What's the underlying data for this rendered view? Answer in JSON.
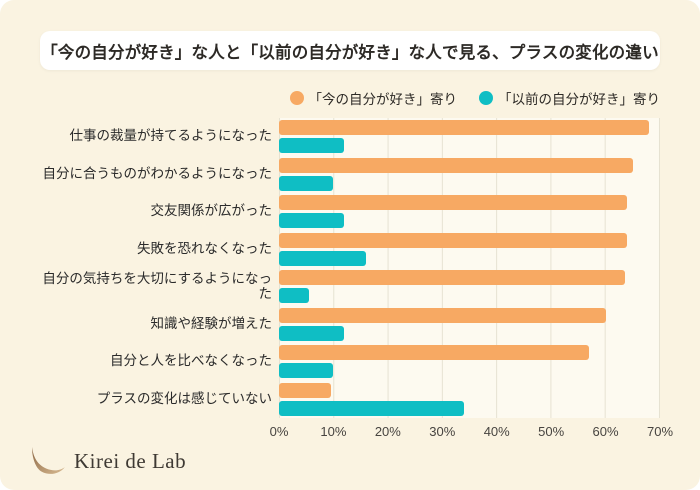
{
  "title": "「今の自分が好き」な人と「以前の自分が好き」な人で見る、プラスの変化の違い",
  "legend": [
    {
      "label": "「今の自分が好き」寄り",
      "color": "#F7A963"
    },
    {
      "label": "「以前の自分が好き」寄り",
      "color": "#0FBEC4"
    }
  ],
  "chart_data": {
    "type": "bar",
    "orientation": "horizontal",
    "title": "「今の自分が好き」な人と「以前の自分が好き」な人で見る、プラスの変化の違い",
    "categories": [
      "仕事の裁量が持てるようになった",
      "自分に合うものがわかるようになった",
      "交友関係が広がった",
      "失敗を恐れなくなった",
      "自分の気持ちを大切にするようになった",
      "知識や経験が増えた",
      "自分と人を比べなくなった",
      "プラスの変化は感じていない"
    ],
    "series": [
      {
        "name": "「今の自分が好き」寄り",
        "color": "#F7A963",
        "values": [
          68,
          65,
          64,
          64,
          63.5,
          60,
          57,
          9.5
        ]
      },
      {
        "name": "「以前の自分が好き」寄り",
        "color": "#0FBEC4",
        "values": [
          12,
          10,
          12,
          16,
          5.5,
          12,
          10,
          34
        ]
      }
    ],
    "xlim": [
      0,
      70
    ],
    "x_ticks": [
      "0%",
      "10%",
      "20%",
      "30%",
      "40%",
      "50%",
      "60%",
      "70%"
    ],
    "xlabel": "",
    "ylabel": "",
    "grid": true,
    "legend_position": "top-right"
  },
  "footer": {
    "logo_text": "Kirei de Lab",
    "logo_icon": "swoosh-leaf-icon"
  },
  "colors": {
    "page_background": "#FAF3E1",
    "plot_background": "#FDFAF0",
    "gridline": "#E6E2D2",
    "title_text": "#2D2A26",
    "series_current": "#F7A963",
    "series_past": "#0FBEC4",
    "logo_swoosh_dark": "#8A6644",
    "logo_swoosh_light": "#D9BB92"
  }
}
